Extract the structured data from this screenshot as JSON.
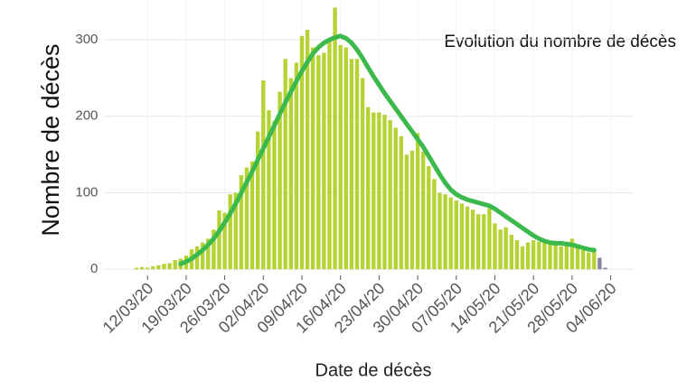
{
  "chart_data": {
    "type": "bar",
    "title": "Evolution du nombre de décès",
    "x_label": "Date de décès",
    "y_label": "Nombre de décès",
    "x": [
      "10/03/20",
      "11/03/20",
      "12/03/20",
      "13/03/20",
      "14/03/20",
      "15/03/20",
      "16/03/20",
      "17/03/20",
      "18/03/20",
      "19/03/20",
      "20/03/20",
      "21/03/20",
      "22/03/20",
      "23/03/20",
      "24/03/20",
      "25/03/20",
      "26/03/20",
      "27/03/20",
      "28/03/20",
      "29/03/20",
      "30/03/20",
      "31/03/20",
      "01/04/20",
      "02/04/20",
      "03/04/20",
      "04/04/20",
      "05/04/20",
      "06/04/20",
      "07/04/20",
      "08/04/20",
      "09/04/20",
      "10/04/20",
      "11/04/20",
      "12/04/20",
      "13/04/20",
      "14/04/20",
      "15/04/20",
      "16/04/20",
      "17/04/20",
      "18/04/20",
      "19/04/20",
      "20/04/20",
      "21/04/20",
      "22/04/20",
      "23/04/20",
      "24/04/20",
      "25/04/20",
      "26/04/20",
      "27/04/20",
      "28/04/20",
      "29/04/20",
      "30/04/20",
      "01/05/20",
      "02/05/20",
      "03/05/20",
      "04/05/20",
      "05/05/20",
      "06/05/20",
      "07/05/20",
      "08/05/20",
      "09/05/20",
      "10/05/20",
      "11/05/20",
      "12/05/20",
      "13/05/20",
      "14/05/20",
      "15/05/20",
      "16/05/20",
      "17/05/20",
      "18/05/20",
      "19/05/20",
      "20/05/20",
      "21/05/20",
      "22/05/20",
      "23/05/20",
      "24/05/20",
      "25/05/20",
      "26/05/20",
      "27/05/20",
      "28/05/20",
      "29/05/20",
      "30/05/20",
      "31/05/20",
      "01/06/20",
      "02/06/20",
      "03/06/20"
    ],
    "series": [
      {
        "type": "bar",
        "values": [
          2,
          3,
          2,
          4,
          5,
          7,
          8,
          12,
          14,
          18,
          26,
          30,
          35,
          40,
          52,
          77,
          74,
          98,
          100,
          123,
          133,
          141,
          180,
          247,
          208,
          194,
          232,
          275,
          250,
          270,
          305,
          313,
          290,
          280,
          283,
          300,
          342,
          293,
          290,
          275,
          275,
          250,
          212,
          205,
          205,
          202,
          195,
          185,
          174,
          150,
          155,
          178,
          154,
          135,
          118,
          100,
          98,
          94,
          90,
          86,
          82,
          78,
          72,
          72,
          80,
          60,
          52,
          55,
          45,
          38,
          30,
          35,
          38,
          36,
          35,
          34,
          33,
          30,
          36,
          40,
          32,
          25,
          22,
          25,
          15,
          2
        ],
        "colors": [
          "#b5d334",
          "#b5d334",
          "#b5d334",
          "#b5d334",
          "#b5d334",
          "#b5d334",
          "#b5d334",
          "#b5d334",
          "#b5d334",
          "#b5d334",
          "#b5d334",
          "#b5d334",
          "#b5d334",
          "#b5d334",
          "#b5d334",
          "#b5d334",
          "#b5d334",
          "#b5d334",
          "#b5d334",
          "#b5d334",
          "#b5d334",
          "#b5d334",
          "#b5d334",
          "#b5d334",
          "#b5d334",
          "#b5d334",
          "#b5d334",
          "#b5d334",
          "#b5d334",
          "#b5d334",
          "#b5d334",
          "#b5d334",
          "#b5d334",
          "#b5d334",
          "#b5d334",
          "#b5d334",
          "#b5d334",
          "#b5d334",
          "#b5d334",
          "#b5d334",
          "#b5d334",
          "#b5d334",
          "#b5d334",
          "#b5d334",
          "#b5d334",
          "#b5d334",
          "#b5d334",
          "#b5d334",
          "#b5d334",
          "#b5d334",
          "#b5d334",
          "#b5d334",
          "#b5d334",
          "#b5d334",
          "#b5d334",
          "#b5d334",
          "#b5d334",
          "#b5d334",
          "#b5d334",
          "#b5d334",
          "#b5d334",
          "#b5d334",
          "#b5d334",
          "#b5d334",
          "#b5d334",
          "#b5d334",
          "#b5d334",
          "#b5d334",
          "#b5d334",
          "#b5d334",
          "#b5d334",
          "#b5d334",
          "#b5d334",
          "#b5d334",
          "#b5d334",
          "#b5d334",
          "#b5d334",
          "#b5d334",
          "#b5d334",
          "#b5d334",
          "#b5d334",
          "#b5d334",
          "#b5d334",
          "#b5d334",
          "#8b849f",
          "#8b849f"
        ]
      },
      {
        "type": "line",
        "color": "#3cb94c",
        "values": [
          null,
          null,
          null,
          null,
          null,
          null,
          null,
          null,
          7,
          10,
          14,
          19,
          25,
          32,
          40,
          50,
          61,
          73,
          86,
          100,
          114,
          128,
          143,
          158,
          173,
          188,
          203,
          218,
          232,
          246,
          259,
          271,
          282,
          290,
          296,
          300,
          303,
          305,
          302,
          296,
          287,
          276,
          264,
          252,
          241,
          230,
          220,
          210,
          200,
          190,
          180,
          170,
          160,
          148,
          136,
          124,
          113,
          104,
          98,
          94,
          91,
          89,
          87,
          85,
          83,
          79,
          74,
          69,
          64,
          59,
          54,
          49,
          44,
          40,
          37,
          35,
          34,
          34,
          33,
          32,
          30,
          28,
          26,
          25,
          null,
          null
        ]
      }
    ],
    "xlim": [
      "04/03/20",
      "08/06/20"
    ],
    "xticks": [
      "12/03/20",
      "19/03/20",
      "26/03/20",
      "02/04/20",
      "09/04/20",
      "16/04/20",
      "23/04/20",
      "30/04/20",
      "07/05/20",
      "14/05/20",
      "21/05/20",
      "28/05/20",
      "04/06/20"
    ],
    "ylim": [
      -8,
      352
    ],
    "yticks": [
      0,
      100,
      200,
      300
    ],
    "grid": true
  }
}
